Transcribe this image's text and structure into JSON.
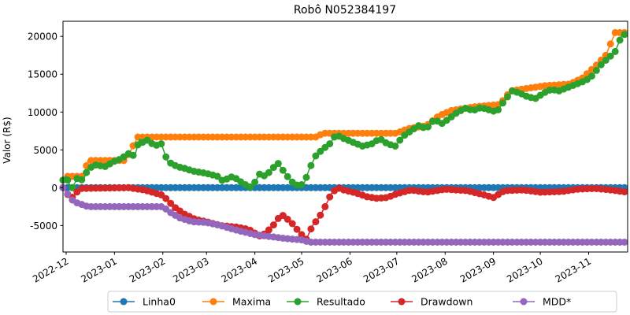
{
  "chart_data": {
    "type": "line",
    "title": "Robô N052384197",
    "xlabel": "",
    "ylabel": "Valor (R$)",
    "xlim": [
      "2022-11-29",
      "2023-11-26"
    ],
    "ylim": [
      -8500,
      22000
    ],
    "yticks": [
      -5000,
      0,
      5000,
      10000,
      15000,
      20000
    ],
    "xticks": [
      "2022-12",
      "2023-01",
      "2023-02",
      "2023-03",
      "2023-04",
      "2023-05",
      "2023-06",
      "2023-07",
      "2023-08",
      "2023-09",
      "2023-10",
      "2023-11"
    ],
    "grid": false,
    "legend_position": "bottom-center",
    "series": [
      {
        "name": "Linha0",
        "color": "#1f77b4",
        "x": [
          "2022-11-29",
          "2023-11-26"
        ],
        "values": [
          0,
          0
        ]
      },
      {
        "name": "Maxima",
        "color": "#ff7f0e",
        "x": [
          "2022-11-29",
          "2022-12-01",
          "2022-12-12",
          "2022-12-15",
          "2023-01-08",
          "2023-01-16",
          "2023-05-10",
          "2023-05-15",
          "2023-07-01",
          "2023-07-08",
          "2023-07-20",
          "2023-07-28",
          "2023-08-05",
          "2023-08-20",
          "2023-09-05",
          "2023-09-12",
          "2023-09-25",
          "2023-10-05",
          "2023-10-20",
          "2023-10-28",
          "2023-11-05",
          "2023-11-12",
          "2023-11-18",
          "2023-11-26"
        ],
        "values": [
          1000,
          1500,
          1500,
          3600,
          3600,
          6700,
          6700,
          7200,
          7200,
          7800,
          8200,
          9500,
          10200,
          10700,
          11000,
          12800,
          13200,
          13500,
          13700,
          14500,
          16000,
          17500,
          20500,
          20500
        ]
      },
      {
        "name": "Resultado",
        "color": "#2ca02c",
        "x": [
          "2022-11-29",
          "2022-12-01",
          "2022-12-03",
          "2022-12-05",
          "2022-12-08",
          "2022-12-12",
          "2022-12-15",
          "2022-12-20",
          "2022-12-26",
          "2023-01-01",
          "2023-01-05",
          "2023-01-10",
          "2023-01-14",
          "2023-01-17",
          "2023-01-20",
          "2023-01-23",
          "2023-01-26",
          "2023-01-31",
          "2023-02-04",
          "2023-02-08",
          "2023-02-12",
          "2023-02-16",
          "2023-02-20",
          "2023-02-26",
          "2023-03-03",
          "2023-03-08",
          "2023-03-12",
          "2023-03-16",
          "2023-03-20",
          "2023-03-25",
          "2023-03-30",
          "2023-04-04",
          "2023-04-08",
          "2023-04-12",
          "2023-04-16",
          "2023-04-20",
          "2023-04-23",
          "2023-04-26",
          "2023-04-30",
          "2023-05-03",
          "2023-05-06",
          "2023-05-10",
          "2023-05-14",
          "2023-05-19",
          "2023-05-23",
          "2023-05-28",
          "2023-06-03",
          "2023-06-09",
          "2023-06-15",
          "2023-06-20",
          "2023-06-25",
          "2023-06-30",
          "2023-07-05",
          "2023-07-10",
          "2023-07-15",
          "2023-07-20",
          "2023-07-25",
          "2023-07-30",
          "2023-08-04",
          "2023-08-09",
          "2023-08-14",
          "2023-08-19",
          "2023-08-24",
          "2023-08-29",
          "2023-09-03",
          "2023-09-08",
          "2023-09-13",
          "2023-09-18",
          "2023-09-23",
          "2023-09-28",
          "2023-10-03",
          "2023-10-08",
          "2023-10-13",
          "2023-10-18",
          "2023-10-23",
          "2023-10-28",
          "2023-11-02",
          "2023-11-06",
          "2023-11-10",
          "2023-11-14",
          "2023-11-18",
          "2023-11-22",
          "2023-11-26"
        ],
        "values": [
          1000,
          1500,
          500,
          0,
          1200,
          1000,
          2500,
          3000,
          2800,
          3500,
          3800,
          4500,
          4200,
          6400,
          5800,
          6500,
          5500,
          5800,
          3500,
          3000,
          2700,
          2500,
          2200,
          2000,
          1800,
          1500,
          800,
          1500,
          1200,
          500,
          0,
          1800,
          1500,
          2500,
          3200,
          2000,
          1200,
          500,
          200,
          800,
          2500,
          4200,
          5000,
          5800,
          7000,
          6500,
          6000,
          5500,
          5800,
          6500,
          5800,
          5500,
          6800,
          7500,
          8200,
          7800,
          9000,
          8500,
          9200,
          10000,
          10500,
          10200,
          10600,
          10300,
          10000,
          11500,
          12800,
          12500,
          12000,
          11800,
          12500,
          13000,
          12800,
          13200,
          13600,
          14000,
          14500,
          15500,
          16500,
          17200,
          18000,
          20000,
          20500
        ]
      },
      {
        "name": "Drawdown",
        "color": "#d62728",
        "x": [
          "2022-11-29",
          "2022-12-04",
          "2022-12-10",
          "2023-01-10",
          "2023-01-20",
          "2023-02-01",
          "2023-02-08",
          "2023-02-15",
          "2023-02-22",
          "2023-03-01",
          "2023-03-10",
          "2023-03-20",
          "2023-03-28",
          "2023-04-05",
          "2023-04-12",
          "2023-04-18",
          "2023-04-24",
          "2023-04-30",
          "2023-05-04",
          "2023-05-08",
          "2023-05-12",
          "2023-05-16",
          "2023-05-20",
          "2023-05-24",
          "2023-05-28",
          "2023-06-05",
          "2023-06-12",
          "2023-06-18",
          "2023-06-25",
          "2023-07-01",
          "2023-07-10",
          "2023-07-20",
          "2023-08-01",
          "2023-08-15",
          "2023-08-25",
          "2023-09-01",
          "2023-09-08",
          "2023-09-20",
          "2023-10-01",
          "2023-10-15",
          "2023-10-25",
          "2023-11-05",
          "2023-11-15",
          "2023-11-26"
        ],
        "values": [
          0,
          -1500,
          -100,
          0,
          -300,
          -1000,
          -2500,
          -3500,
          -4200,
          -4500,
          -5000,
          -5200,
          -5500,
          -6500,
          -5200,
          -3500,
          -4500,
          -6000,
          -6800,
          -5000,
          -4000,
          -2500,
          -800,
          0,
          -300,
          -700,
          -1200,
          -1400,
          -1300,
          -800,
          -300,
          -600,
          -200,
          -400,
          -900,
          -1300,
          -400,
          -300,
          -600,
          -500,
          -200,
          -100,
          -300,
          -600
        ]
      },
      {
        "name": "MDD*",
        "color": "#9467bd",
        "x": [
          "2022-11-29",
          "2022-12-01",
          "2022-12-04",
          "2022-12-08",
          "2022-12-15",
          "2023-02-01",
          "2023-02-06",
          "2023-02-12",
          "2023-02-20",
          "2023-03-01",
          "2023-03-10",
          "2023-03-20",
          "2023-04-01",
          "2023-04-20",
          "2023-05-01",
          "2023-05-06",
          "2023-11-26"
        ],
        "values": [
          0,
          -500,
          -1500,
          -2000,
          -2500,
          -2500,
          -3300,
          -4000,
          -4500,
          -4600,
          -5000,
          -5600,
          -6200,
          -6700,
          -6900,
          -7200,
          -7200
        ]
      }
    ]
  }
}
